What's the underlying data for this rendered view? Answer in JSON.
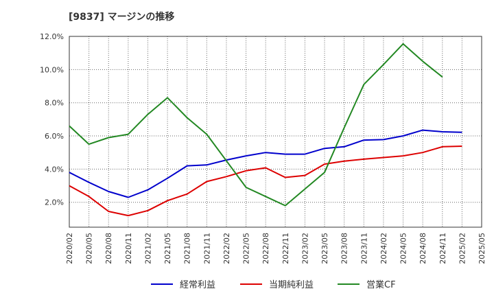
{
  "chart_data": {
    "type": "line",
    "title": "[9837]  マージンの推移",
    "xlabel": "",
    "ylabel": "",
    "ylim": [
      0.5,
      12.0
    ],
    "yticks": [
      2.0,
      4.0,
      6.0,
      8.0,
      10.0,
      12.0
    ],
    "ytick_labels": [
      "2.0%",
      "4.0%",
      "6.0%",
      "8.0%",
      "10.0%",
      "12.0%"
    ],
    "x": [
      "2020/02",
      "2020/05",
      "2020/08",
      "2020/11",
      "2021/02",
      "2021/05",
      "2021/08",
      "2021/11",
      "2022/02",
      "2022/05",
      "2022/08",
      "2022/11",
      "2023/02",
      "2023/05",
      "2023/08",
      "2023/11",
      "2024/02",
      "2024/05",
      "2024/08",
      "2024/11",
      "2025/02",
      "2025/05"
    ],
    "grid": true,
    "legend_position": "bottom",
    "series": [
      {
        "name": "経常利益",
        "color": "#0000cc",
        "values": [
          3.8,
          3.2,
          2.65,
          2.3,
          2.75,
          3.45,
          4.2,
          4.25,
          4.55,
          4.8,
          5.0,
          4.9,
          4.9,
          5.25,
          5.35,
          5.75,
          5.78,
          6.0,
          6.35,
          6.25,
          6.22,
          null
        ]
      },
      {
        "name": "当期純利益",
        "color": "#dd0000",
        "values": [
          3.0,
          2.35,
          1.45,
          1.2,
          1.5,
          2.1,
          2.5,
          3.25,
          3.55,
          3.9,
          4.08,
          3.5,
          3.62,
          4.3,
          4.48,
          4.6,
          4.7,
          4.8,
          5.0,
          5.35,
          5.38,
          null
        ]
      },
      {
        "name": "営業CF",
        "color": "#228822",
        "values": [
          6.6,
          5.5,
          5.9,
          6.1,
          7.3,
          8.3,
          7.1,
          6.1,
          4.5,
          2.9,
          2.35,
          1.8,
          2.8,
          3.8,
          6.5,
          9.1,
          10.3,
          11.55,
          10.5,
          9.55,
          null,
          null
        ]
      }
    ]
  }
}
